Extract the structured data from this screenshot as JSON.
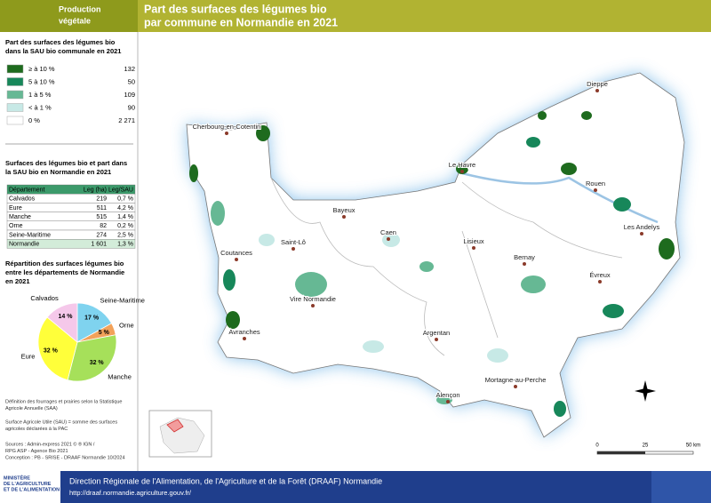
{
  "header": {
    "section": [
      "Production",
      "végétale"
    ],
    "title": [
      "Part des surfaces des légumes bio",
      "par commune en Normandie en 2021"
    ]
  },
  "legend": {
    "title": [
      "Part des surfaces des légumes bio",
      "dans la SAU bio communale en 2021"
    ],
    "items": [
      {
        "label": "≥ à 10 %",
        "count": "132",
        "color": "#1e6b1e"
      },
      {
        "label": "5 à 10 %",
        "count": "50",
        "color": "#17875a"
      },
      {
        "label": "1 à 5 %",
        "count": "109",
        "color": "#66b894"
      },
      {
        "label": "< à 1 %",
        "count": "90",
        "color": "#c7e9e6"
      },
      {
        "label": "0 %",
        "count": "2 271",
        "color": "#ffffff"
      }
    ]
  },
  "table": {
    "title": [
      "Surfaces des légumes bio et part dans",
      "la SAU bio en Normandie en 2021"
    ],
    "header": [
      "Département",
      "Leg (ha)",
      "Leg/SAU"
    ],
    "rows": [
      [
        "Calvados",
        "219",
        "0,7 %"
      ],
      [
        "Eure",
        "511",
        "4,2 %"
      ],
      [
        "Manche",
        "515",
        "1,4 %"
      ],
      [
        "Orne",
        "82",
        "0,2 %"
      ],
      [
        "Seine-Maritime",
        "274",
        "2,5 %"
      ],
      [
        "Normandie",
        "1 601",
        "1,3 %"
      ]
    ]
  },
  "chart_data": {
    "type": "pie",
    "title": [
      "Répartition des surfaces légumes bio",
      "entre les départements de Normandie",
      "en 2021"
    ],
    "categories": [
      "Seine-Maritime",
      "Orne",
      "Manche",
      "Eure",
      "Calvados"
    ],
    "values": [
      17,
      5,
      32,
      32,
      14
    ],
    "value_labels": [
      "17 %",
      "5 %",
      "32 %",
      "32 %",
      "14 %"
    ],
    "colors": [
      "#7fd3ef",
      "#f2a25a",
      "#a6e05a",
      "#ffff3a",
      "#f5c8ea"
    ]
  },
  "map": {
    "cities": [
      "Dieppe",
      "Cherbourg-en-Cotentin",
      "Le Havre",
      "Rouen",
      "Bayeux",
      "Caen",
      "Lisieux",
      "Saint-Lô",
      "Les Andelys",
      "Coutances",
      "Bernay",
      "Évreux",
      "Vire Normandie",
      "Avranches",
      "Argentan",
      "Mortagne-au-Perche",
      "Alençon"
    ],
    "scale": [
      "0",
      "25",
      "50 km"
    ]
  },
  "notes": [
    [
      "Définition des fourrages et prairies selon la Statistique",
      "Agricole Annuelle (SAA)"
    ],
    [
      "Surface Agricole Utile (SAU) = somme des surfaces",
      "agricoles déclarées à la PAC"
    ],
    [
      "Sources       : Admin-express 2021 © ® IGN /",
      "                     RPG ASP - Agence Bio 2021"
    ],
    [
      "Conception : PB - SRISE - DRAAF Normandie 10/2024"
    ]
  ],
  "footer": {
    "ministry": [
      "MINISTÈRE",
      "DE L'AGRICULTURE",
      "ET DE L'ALIMENTATION"
    ],
    "title": "Direction Régionale de l'Alimentation, de l'Agriculture et de la Forêt (DRAAF) Normandie",
    "url": "http://draaf.normandie.agriculture.gouv.fr/"
  }
}
